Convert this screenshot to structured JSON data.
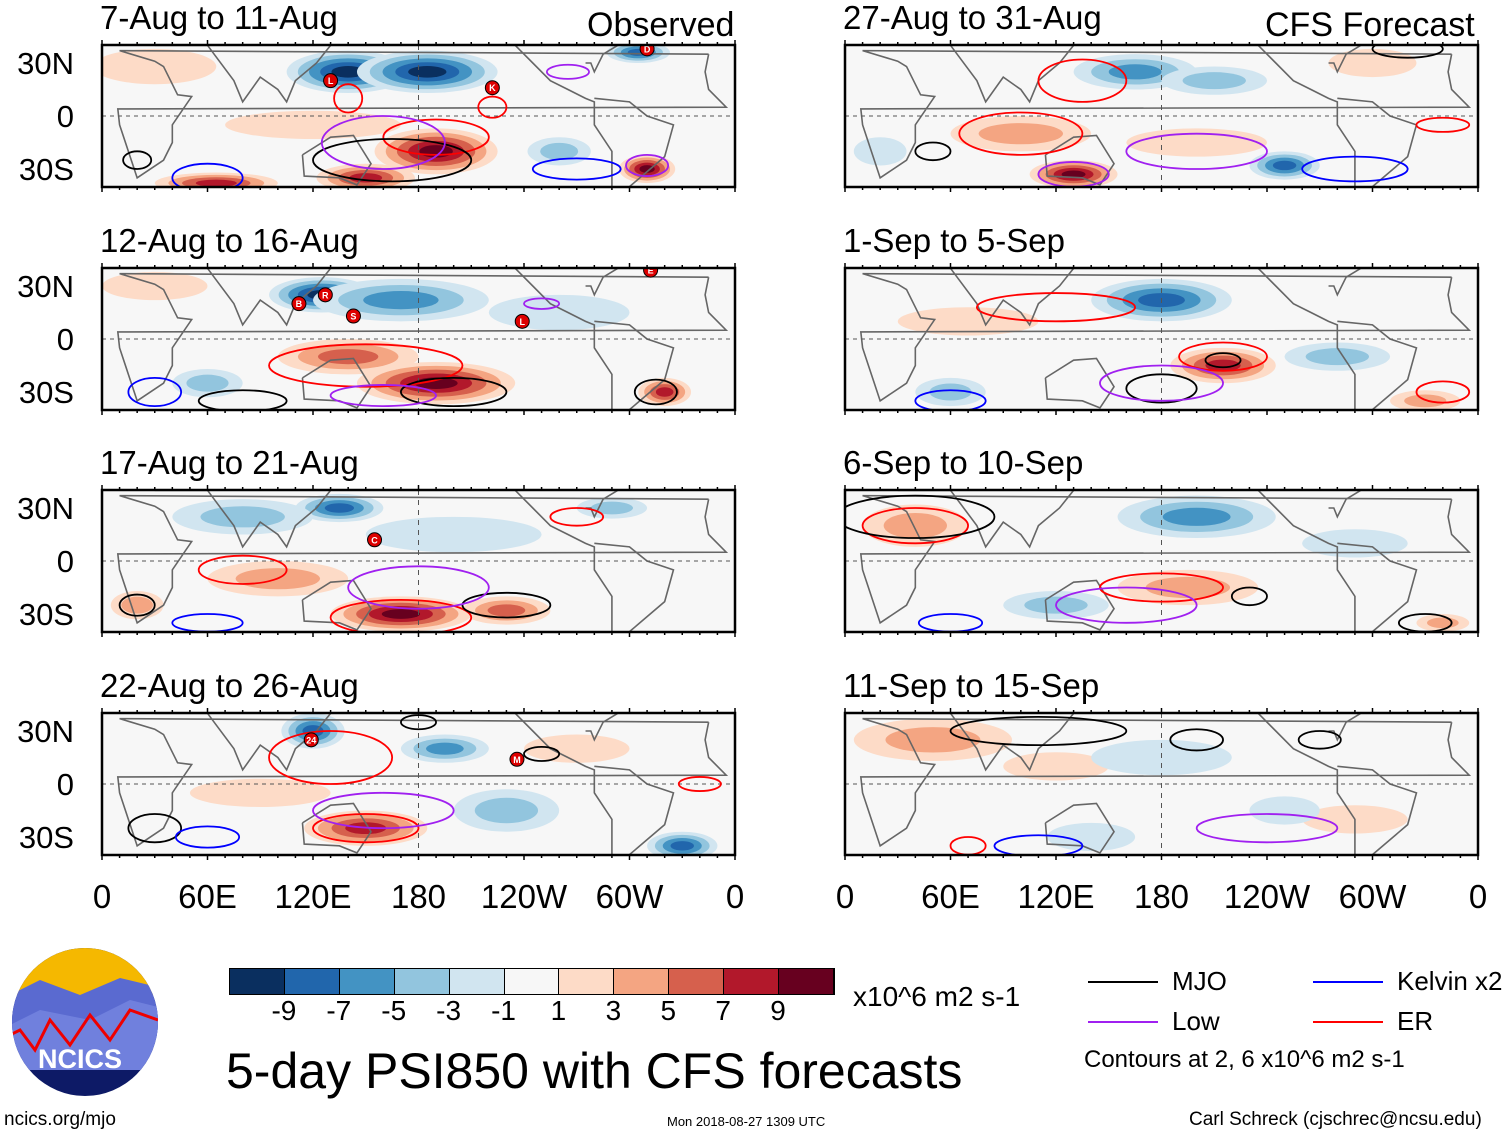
{
  "chart_data": {
    "type": "heatmap",
    "title": "5-day PSI850 with CFS forecasts",
    "units": "x10^6 m2 s-1",
    "colorbar": {
      "ticks": [
        "-9",
        "-7",
        "-5",
        "-3",
        "-1",
        "1",
        "3",
        "5",
        "7",
        "9"
      ],
      "colors": [
        "#0a2f5f",
        "#2166ac",
        "#4393c3",
        "#92c5de",
        "#d1e5f0",
        "#f7f7f7",
        "#fddbc7",
        "#f4a582",
        "#d6604d",
        "#b2182b",
        "#67001f"
      ]
    },
    "lat_labels": [
      "30N",
      "0",
      "30S"
    ],
    "lon_labels": [
      "0",
      "60E",
      "120E",
      "180",
      "120W",
      "60W",
      "0"
    ],
    "column_labels": {
      "left": "Observed",
      "right": "CFS Forecast"
    },
    "legend": [
      {
        "name": "MJO",
        "color": "#000000"
      },
      {
        "name": "Kelvin x2",
        "color": "#0000ff"
      },
      {
        "name": "Low",
        "color": "#a020f0"
      },
      {
        "name": "ER",
        "color": "#ff0000"
      }
    ],
    "contour_note": "Contours at 2, 6 x10^6 m2 s-1",
    "panels": [
      {
        "title": "7-Aug to 11-Aug",
        "col": 0,
        "row": 0,
        "anomalies": [
          [
            140,
            25,
            35,
            12,
            -9
          ],
          [
            185,
            25,
            40,
            12,
            -9
          ],
          [
            305,
            36,
            18,
            6,
            -7
          ],
          [
            190,
            -20,
            35,
            13,
            10
          ],
          [
            150,
            -35,
            28,
            8,
            8
          ],
          [
            310,
            -30,
            16,
            8,
            9
          ],
          [
            65,
            -38,
            35,
            6,
            7
          ],
          [
            30,
            28,
            35,
            10,
            2
          ],
          [
            260,
            -20,
            18,
            8,
            -3
          ],
          [
            120,
            -5,
            50,
            8,
            2
          ]
        ],
        "contours": [
          [
            140,
            10,
            8,
            8,
            "er"
          ],
          [
            222,
            5,
            8,
            6,
            "er"
          ],
          [
            190,
            -12,
            30,
            10,
            "er"
          ],
          [
            165,
            -25,
            45,
            12,
            "mjo"
          ],
          [
            20,
            -25,
            8,
            5,
            "mjo"
          ],
          [
            60,
            -35,
            20,
            8,
            "kelvin"
          ],
          [
            270,
            -30,
            25,
            6,
            "kelvin"
          ],
          [
            160,
            -15,
            35,
            15,
            "low"
          ],
          [
            310,
            -28,
            12,
            6,
            "low"
          ],
          [
            265,
            25,
            12,
            4,
            "low"
          ]
        ],
        "storms": [
          {
            "label": "L",
            "lon": 130,
            "lat": 20
          },
          {
            "label": "K",
            "lon": 222,
            "lat": 16
          },
          {
            "label": "D",
            "lon": 310,
            "lat": 38
          }
        ]
      },
      {
        "title": "12-Aug to 16-Aug",
        "col": 0,
        "row": 1,
        "anomalies": [
          [
            125,
            25,
            30,
            10,
            -9
          ],
          [
            170,
            22,
            50,
            12,
            -5
          ],
          [
            60,
            -25,
            20,
            8,
            -3
          ],
          [
            190,
            -25,
            45,
            12,
            10
          ],
          [
            140,
            -10,
            40,
            10,
            5
          ],
          [
            320,
            -30,
            15,
            8,
            7
          ],
          [
            30,
            30,
            30,
            8,
            2
          ],
          [
            260,
            15,
            40,
            10,
            -2
          ]
        ],
        "contours": [
          [
            150,
            -15,
            55,
            12,
            "er"
          ],
          [
            200,
            -30,
            30,
            8,
            "mjo"
          ],
          [
            80,
            -35,
            25,
            6,
            "mjo"
          ],
          [
            30,
            -30,
            15,
            8,
            "kelvin"
          ],
          [
            315,
            -30,
            12,
            7,
            "mjo"
          ],
          [
            160,
            -32,
            30,
            6,
            "low"
          ],
          [
            250,
            20,
            10,
            3,
            "low"
          ]
        ],
        "storms": [
          {
            "label": "B",
            "lon": 112,
            "lat": 20
          },
          {
            "label": "R",
            "lon": 127,
            "lat": 25
          },
          {
            "label": "S",
            "lon": 143,
            "lat": 13
          },
          {
            "label": "L",
            "lon": 239,
            "lat": 10
          },
          {
            "label": "E",
            "lon": 312,
            "lat": 39
          }
        ]
      },
      {
        "title": "17-Aug to 21-Aug",
        "col": 0,
        "row": 2,
        "anomalies": [
          [
            135,
            30,
            25,
            8,
            -7
          ],
          [
            80,
            25,
            40,
            10,
            -3
          ],
          [
            170,
            -30,
            40,
            10,
            10
          ],
          [
            100,
            -10,
            40,
            10,
            3
          ],
          [
            230,
            -28,
            25,
            8,
            6
          ],
          [
            20,
            -25,
            15,
            8,
            3
          ],
          [
            200,
            15,
            50,
            10,
            -2
          ],
          [
            290,
            30,
            20,
            6,
            -3
          ]
        ],
        "contours": [
          [
            80,
            -5,
            25,
            8,
            "er"
          ],
          [
            170,
            -32,
            40,
            10,
            "er"
          ],
          [
            230,
            -25,
            25,
            7,
            "mjo"
          ],
          [
            20,
            -25,
            10,
            6,
            "mjo"
          ],
          [
            60,
            -35,
            20,
            5,
            "kelvin"
          ],
          [
            180,
            -15,
            40,
            12,
            "low"
          ],
          [
            270,
            25,
            15,
            5,
            "er"
          ]
        ],
        "storms": [
          {
            "label": "C",
            "lon": 155,
            "lat": 12
          }
        ]
      },
      {
        "title": "22-Aug to 26-Aug",
        "col": 0,
        "row": 3,
        "anomalies": [
          [
            120,
            30,
            18,
            10,
            -7
          ],
          [
            195,
            20,
            25,
            8,
            -5
          ],
          [
            150,
            -25,
            35,
            10,
            7
          ],
          [
            90,
            -5,
            40,
            8,
            2
          ],
          [
            330,
            -35,
            20,
            8,
            -7
          ],
          [
            230,
            -15,
            30,
            12,
            -3
          ],
          [
            270,
            20,
            30,
            8,
            2
          ]
        ],
        "contours": [
          [
            130,
            15,
            35,
            15,
            "er"
          ],
          [
            150,
            -25,
            30,
            8,
            "er"
          ],
          [
            30,
            -25,
            15,
            8,
            "mjo"
          ],
          [
            180,
            35,
            10,
            4,
            "mjo"
          ],
          [
            250,
            17,
            10,
            4,
            "mjo"
          ],
          [
            60,
            -30,
            18,
            6,
            "kelvin"
          ],
          [
            160,
            -15,
            40,
            10,
            "low"
          ],
          [
            340,
            0,
            12,
            4,
            "er"
          ]
        ],
        "storms": [
          {
            "label": "24",
            "lon": 119,
            "lat": 25
          },
          {
            "label": "M",
            "lon": 236,
            "lat": 14
          }
        ]
      },
      {
        "title": "27-Aug to 31-Aug",
        "col": 1,
        "row": 0,
        "anomalies": [
          [
            165,
            25,
            35,
            10,
            -5
          ],
          [
            210,
            20,
            30,
            8,
            -3
          ],
          [
            130,
            -33,
            25,
            8,
            10
          ],
          [
            100,
            -10,
            40,
            10,
            4
          ],
          [
            250,
            -28,
            20,
            8,
            -7
          ],
          [
            300,
            30,
            25,
            8,
            2
          ],
          [
            20,
            -20,
            15,
            8,
            -2
          ],
          [
            200,
            -15,
            40,
            8,
            2
          ]
        ],
        "contours": [
          [
            135,
            20,
            25,
            12,
            "er"
          ],
          [
            100,
            -10,
            35,
            12,
            "er"
          ],
          [
            130,
            -33,
            20,
            7,
            "low"
          ],
          [
            50,
            -20,
            10,
            5,
            "mjo"
          ],
          [
            320,
            38,
            20,
            5,
            "mjo"
          ],
          [
            290,
            -30,
            30,
            7,
            "kelvin"
          ],
          [
            200,
            -20,
            40,
            10,
            "low"
          ],
          [
            340,
            -5,
            15,
            4,
            "er"
          ]
        ],
        "storms": []
      },
      {
        "title": "1-Sep to 5-Sep",
        "col": 1,
        "row": 1,
        "anomalies": [
          [
            180,
            22,
            40,
            12,
            -7
          ],
          [
            215,
            -15,
            30,
            10,
            7
          ],
          [
            280,
            -10,
            30,
            8,
            -3
          ],
          [
            70,
            10,
            40,
            8,
            2
          ],
          [
            60,
            -30,
            20,
            8,
            -3
          ],
          [
            330,
            -35,
            20,
            6,
            4
          ]
        ],
        "contours": [
          [
            120,
            18,
            45,
            8,
            "er"
          ],
          [
            215,
            -10,
            25,
            8,
            "er"
          ],
          [
            215,
            -12,
            10,
            4,
            "mjo"
          ],
          [
            180,
            -28,
            20,
            8,
            "mjo"
          ],
          [
            60,
            -35,
            20,
            6,
            "kelvin"
          ],
          [
            180,
            -25,
            35,
            10,
            "low"
          ],
          [
            340,
            -30,
            15,
            6,
            "er"
          ]
        ],
        "storms": []
      },
      {
        "title": "6-Sep to 10-Sep",
        "col": 1,
        "row": 2,
        "anomalies": [
          [
            40,
            20,
            30,
            12,
            4
          ],
          [
            200,
            25,
            45,
            12,
            -5
          ],
          [
            195,
            -15,
            40,
            10,
            4
          ],
          [
            120,
            -25,
            30,
            8,
            -3
          ],
          [
            340,
            -35,
            15,
            5,
            3
          ],
          [
            290,
            10,
            30,
            8,
            -2
          ]
        ],
        "contours": [
          [
            40,
            20,
            30,
            10,
            "er"
          ],
          [
            40,
            25,
            45,
            12,
            "mjo"
          ],
          [
            180,
            -15,
            35,
            8,
            "er"
          ],
          [
            230,
            -20,
            10,
            5,
            "mjo"
          ],
          [
            60,
            -35,
            18,
            5,
            "kelvin"
          ],
          [
            160,
            -25,
            40,
            10,
            "low"
          ],
          [
            330,
            -35,
            15,
            5,
            "mjo"
          ]
        ],
        "storms": []
      },
      {
        "title": "11-Sep to 15-Sep",
        "col": 1,
        "row": 3,
        "anomalies": [
          [
            50,
            25,
            45,
            12,
            3
          ],
          [
            120,
            10,
            30,
            8,
            2
          ],
          [
            180,
            15,
            40,
            10,
            -2
          ],
          [
            290,
            -20,
            30,
            8,
            2
          ],
          [
            250,
            -15,
            20,
            8,
            -2
          ],
          [
            140,
            -30,
            25,
            8,
            -2
          ]
        ],
        "contours": [
          [
            110,
            30,
            50,
            8,
            "mjo"
          ],
          [
            200,
            25,
            15,
            6,
            "mjo"
          ],
          [
            270,
            25,
            12,
            5,
            "mjo"
          ],
          [
            70,
            -35,
            10,
            5,
            "er"
          ],
          [
            110,
            -35,
            25,
            6,
            "kelvin"
          ],
          [
            240,
            -25,
            40,
            8,
            "low"
          ]
        ],
        "storms": []
      }
    ]
  },
  "footer": {
    "site": "ncics.org/mjo",
    "timestamp": "Mon 2018-08-27 1309 UTC",
    "credit": "Carl Schreck (cjschrec@ncsu.edu)",
    "logo_text": "NCICS"
  }
}
